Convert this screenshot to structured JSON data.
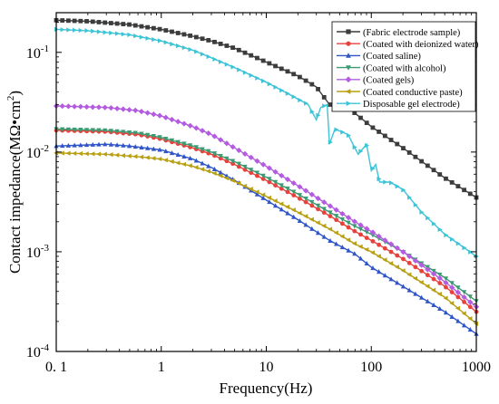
{
  "chart_data": {
    "type": "line",
    "title": "",
    "xlabel": "Frequency(Hz)",
    "ylabel_main": "Contact impedance(MΩ•cm",
    "ylabel_sup": "2",
    "ylabel_end": ")",
    "xscale": "log",
    "yscale": "log",
    "xlim": [
      0.1,
      1000
    ],
    "ylim": [
      0.0001,
      0.25
    ],
    "grid": false,
    "legend_position": "top-right",
    "x_ticks": [
      {
        "value": 0.1,
        "label": "0. 1"
      },
      {
        "value": 1,
        "label": "1"
      },
      {
        "value": 10,
        "label": "10"
      },
      {
        "value": 100,
        "label": "100"
      },
      {
        "value": 1000,
        "label": "1000"
      }
    ],
    "y_ticks": [
      {
        "value": 0.0001,
        "base": "10",
        "exp": "-4"
      },
      {
        "value": 0.001,
        "base": "10",
        "exp": "-3"
      },
      {
        "value": 0.01,
        "base": "10",
        "exp": "-2"
      },
      {
        "value": 0.1,
        "base": "10",
        "exp": "-1"
      }
    ],
    "series": [
      {
        "name": "(Fabric electrode sample)",
        "color": "#3c3c3c",
        "marker": "square",
        "points": [
          [
            0.1,
            0.21
          ],
          [
            0.2,
            0.205
          ],
          [
            0.5,
            0.19
          ],
          [
            1,
            0.17
          ],
          [
            2,
            0.145
          ],
          [
            3,
            0.13
          ],
          [
            5,
            0.11
          ],
          [
            10,
            0.08
          ],
          [
            20,
            0.058
          ],
          [
            30,
            0.045
          ],
          [
            40,
            0.03
          ],
          [
            60,
            0.028
          ],
          [
            100,
            0.018
          ],
          [
            200,
            0.011
          ],
          [
            500,
            0.0055
          ],
          [
            1000,
            0.0035
          ]
        ]
      },
      {
        "name": "(Coated with deionized water)",
        "color": "#e8413c",
        "marker": "circle",
        "points": [
          [
            0.1,
            0.0165
          ],
          [
            0.3,
            0.016
          ],
          [
            0.6,
            0.015
          ],
          [
            1,
            0.0135
          ],
          [
            2,
            0.011
          ],
          [
            3,
            0.0095
          ],
          [
            5,
            0.0075
          ],
          [
            10,
            0.0052
          ],
          [
            20,
            0.0035
          ],
          [
            40,
            0.0023
          ],
          [
            70,
            0.0016
          ],
          [
            100,
            0.0013
          ],
          [
            200,
            0.00085
          ],
          [
            500,
            0.00045
          ],
          [
            1000,
            0.00025
          ]
        ]
      },
      {
        "name": "(Coated saline)",
        "color": "#2f55c8",
        "marker": "triangle-up",
        "points": [
          [
            0.1,
            0.0115
          ],
          [
            0.2,
            0.0118
          ],
          [
            0.3,
            0.012
          ],
          [
            0.5,
            0.0115
          ],
          [
            1,
            0.0105
          ],
          [
            2,
            0.0085
          ],
          [
            3,
            0.007
          ],
          [
            5,
            0.0052
          ],
          [
            10,
            0.0033
          ],
          [
            20,
            0.0021
          ],
          [
            40,
            0.0013
          ],
          [
            70,
            0.00095
          ],
          [
            100,
            0.0007
          ],
          [
            200,
            0.00045
          ],
          [
            500,
            0.00025
          ],
          [
            1000,
            0.00015
          ]
        ]
      },
      {
        "name": "(Coated with alcohol)",
        "color": "#3c9a72",
        "marker": "triangle-down",
        "points": [
          [
            0.1,
            0.017
          ],
          [
            0.3,
            0.0165
          ],
          [
            0.6,
            0.0155
          ],
          [
            1,
            0.014
          ],
          [
            2,
            0.0115
          ],
          [
            3,
            0.01
          ],
          [
            5,
            0.008
          ],
          [
            10,
            0.0056
          ],
          [
            20,
            0.0038
          ],
          [
            40,
            0.0025
          ],
          [
            70,
            0.0018
          ],
          [
            100,
            0.0015
          ],
          [
            200,
            0.001
          ],
          [
            500,
            0.00055
          ],
          [
            1000,
            0.00032
          ]
        ]
      },
      {
        "name": "(Coated gels)",
        "color": "#b45ce0",
        "marker": "diamond",
        "points": [
          [
            0.1,
            0.029
          ],
          [
            0.3,
            0.028
          ],
          [
            0.6,
            0.026
          ],
          [
            1,
            0.023
          ],
          [
            2,
            0.018
          ],
          [
            3,
            0.015
          ],
          [
            5,
            0.011
          ],
          [
            10,
            0.0072
          ],
          [
            20,
            0.0046
          ],
          [
            40,
            0.0029
          ],
          [
            70,
            0.002
          ],
          [
            100,
            0.0016
          ],
          [
            200,
            0.001
          ],
          [
            500,
            0.0005
          ],
          [
            1000,
            0.00028
          ]
        ]
      },
      {
        "name": "(Coated conductive paste)",
        "color": "#b8a012",
        "marker": "triangle-left",
        "points": [
          [
            0.1,
            0.0098
          ],
          [
            0.3,
            0.0095
          ],
          [
            0.6,
            0.009
          ],
          [
            1,
            0.0085
          ],
          [
            2,
            0.0072
          ],
          [
            3,
            0.0063
          ],
          [
            5,
            0.0051
          ],
          [
            10,
            0.0036
          ],
          [
            20,
            0.0025
          ],
          [
            40,
            0.0017
          ],
          [
            70,
            0.0012
          ],
          [
            100,
            0.001
          ],
          [
            200,
            0.00065
          ],
          [
            500,
            0.00035
          ],
          [
            1000,
            0.00019
          ]
        ]
      },
      {
        "name": "Disposable gel electrode)",
        "color": "#3cc4d6",
        "marker": "triangle-right",
        "points": [
          [
            0.1,
            0.17
          ],
          [
            0.2,
            0.165
          ],
          [
            0.5,
            0.15
          ],
          [
            1,
            0.13
          ],
          [
            2,
            0.105
          ],
          [
            3,
            0.088
          ],
          [
            5,
            0.07
          ],
          [
            10,
            0.05
          ],
          [
            15,
            0.04
          ],
          [
            20,
            0.034
          ],
          [
            25,
            0.03
          ],
          [
            30,
            0.021
          ],
          [
            33,
            0.028
          ],
          [
            38,
            0.03
          ],
          [
            40,
            0.012
          ],
          [
            45,
            0.017
          ],
          [
            60,
            0.015
          ],
          [
            75,
            0.0095
          ],
          [
            90,
            0.012
          ],
          [
            100,
            0.0065
          ],
          [
            110,
            0.0075
          ],
          [
            120,
            0.005
          ],
          [
            150,
            0.005
          ],
          [
            200,
            0.0042
          ],
          [
            300,
            0.0025
          ],
          [
            500,
            0.0015
          ],
          [
            1000,
            0.0009
          ]
        ]
      }
    ]
  }
}
